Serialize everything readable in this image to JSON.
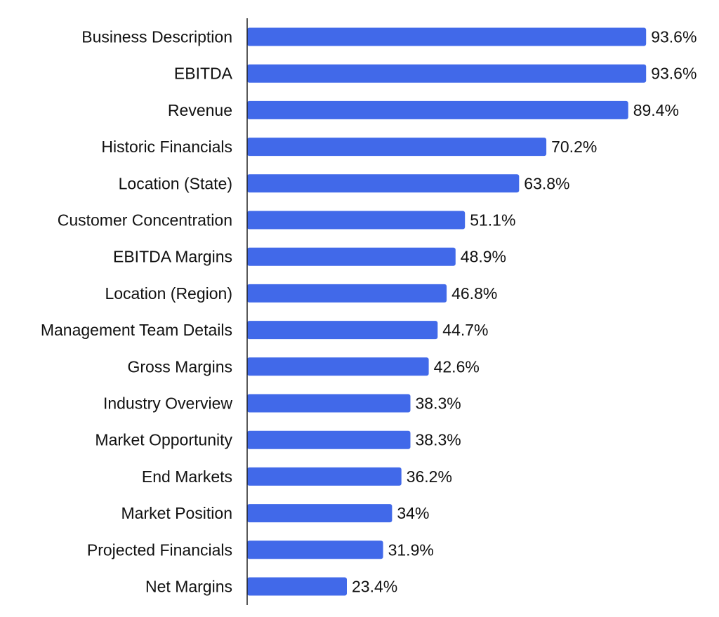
{
  "chart_data": {
    "type": "bar",
    "orientation": "horizontal",
    "categories": [
      "Business Description",
      "EBITDA",
      "Revenue",
      "Historic Financials",
      "Location (State)",
      "Customer Concentration",
      "EBITDA Margins",
      "Location (Region)",
      "Management Team Details",
      "Gross Margins",
      "Industry Overview",
      "Market Opportunity",
      "End Markets",
      "Market Position",
      "Projected Financials",
      "Net Margins"
    ],
    "values": [
      93.6,
      93.6,
      89.4,
      70.2,
      63.8,
      51.1,
      48.9,
      46.8,
      44.7,
      42.6,
      38.3,
      38.3,
      36.2,
      34,
      31.9,
      23.4
    ],
    "value_labels": [
      "93.6%",
      "93.6%",
      "89.4%",
      "70.2%",
      "63.8%",
      "51.1%",
      "48.9%",
      "46.8%",
      "44.7%",
      "42.6%",
      "38.3%",
      "38.3%",
      "36.2%",
      "34%",
      "31.9%",
      "23.4%"
    ],
    "title": "",
    "xlabel": "",
    "ylabel": "",
    "xlim": [
      0,
      100
    ],
    "grid": false,
    "legend": "none",
    "bar_color": "#4169e9",
    "axis_color": "#222222",
    "text_color": "#111111"
  }
}
